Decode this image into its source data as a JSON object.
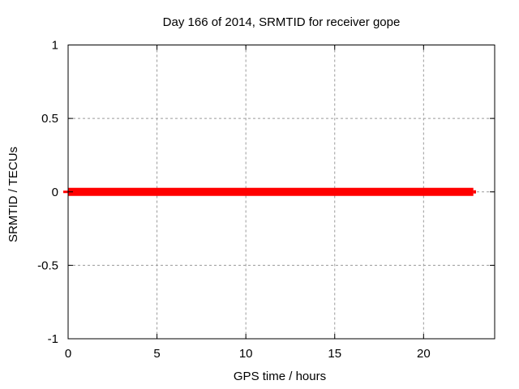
{
  "chart_data": {
    "type": "line",
    "title": "Day 166 of 2014, SRMTID for receiver gope",
    "xlabel": "GPS time / hours",
    "ylabel": "SRMTID / TECUs",
    "xlim": [
      0,
      24
    ],
    "ylim": [
      -1,
      1
    ],
    "xticks": [
      0,
      5,
      10,
      15,
      20
    ],
    "yticks": [
      1,
      0.5,
      0,
      -0.5,
      -1
    ],
    "grid": true,
    "legend": "none",
    "series": [
      {
        "name": "SRMTID",
        "color": "#ff0000",
        "y": 0,
        "x_start": 0,
        "x_end": 22.8,
        "thin_tail_x_end": 22.95,
        "description": "constant zero TECU value drawn as a thick horizontal red band"
      }
    ]
  },
  "colors": {
    "background": "#ffffff",
    "axis": "#000000",
    "grid": "#9a9a9a",
    "series": "#ff0000"
  }
}
